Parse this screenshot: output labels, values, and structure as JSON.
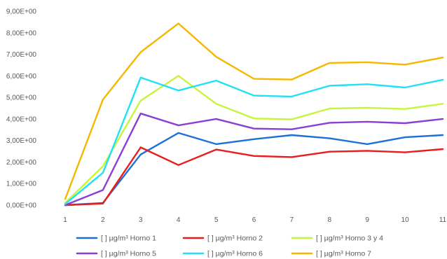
{
  "chart_data": {
    "type": "line",
    "title": "",
    "xlabel": "",
    "ylabel": "",
    "x": [
      "1",
      "2",
      "3",
      "4",
      "5",
      "6",
      "7",
      "8",
      "9",
      "10",
      "11"
    ],
    "y_ticks": [
      "0,00E+00",
      "1,00E+00",
      "2,00E+00",
      "3,00E+00",
      "4,00E+00",
      "5,00E+00",
      "6,00E+00",
      "7,00E+00",
      "8,00E+00",
      "9,00E+00"
    ],
    "ylim": [
      0,
      9
    ],
    "grid": false,
    "legend_position": "bottom",
    "series": [
      {
        "name": "[ ] µg/m³ Horno 1",
        "color": "#1f6fd8",
        "values": [
          0.0,
          0.1,
          2.35,
          3.35,
          2.83,
          3.06,
          3.25,
          3.1,
          2.83,
          3.15,
          3.25
        ]
      },
      {
        "name": "[ ] µg/m³ Horno 2",
        "color": "#e81e1e",
        "values": [
          0.0,
          0.07,
          2.68,
          1.86,
          2.58,
          2.28,
          2.23,
          2.48,
          2.52,
          2.45,
          2.6
        ]
      },
      {
        "name": "[ ] µg/m³ Horno 3 y 4",
        "color": "#c7f53a",
        "values": [
          0.1,
          1.8,
          4.85,
          6.0,
          4.7,
          4.02,
          3.98,
          4.48,
          4.52,
          4.46,
          4.7
        ]
      },
      {
        "name": "[ ] µg/m³ Horno 5",
        "color": "#8a3fd6",
        "values": [
          0.0,
          0.7,
          4.25,
          3.7,
          4.0,
          3.55,
          3.52,
          3.82,
          3.87,
          3.8,
          4.0
        ]
      },
      {
        "name": "[ ] µg/m³ Horno 6",
        "color": "#22e0f5",
        "values": [
          0.05,
          1.5,
          5.92,
          5.32,
          5.78,
          5.08,
          5.04,
          5.54,
          5.61,
          5.46,
          5.82
        ]
      },
      {
        "name": "[ ] µg/m³ Horno 7",
        "color": "#f5b800",
        "values": [
          0.28,
          4.9,
          7.1,
          8.43,
          6.88,
          5.86,
          5.83,
          6.6,
          6.63,
          6.52,
          6.85
        ]
      }
    ]
  }
}
